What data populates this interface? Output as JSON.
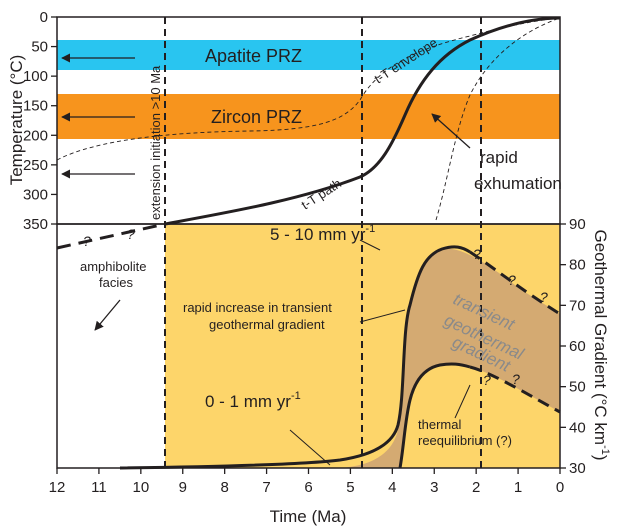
{
  "colors": {
    "apatite_band": "#29c5f0",
    "zircon_band": "#f7941d",
    "lower_field": "#fdd56a",
    "transient_field": "#d4aa72",
    "ink": "#231f20"
  },
  "x_axis": {
    "label": "Time (Ma)",
    "ticks": [
      "12",
      "11",
      "10",
      "9",
      "8",
      "7",
      "6",
      "5",
      "4",
      "3",
      "2",
      "1",
      "0"
    ],
    "range": [
      12,
      0
    ]
  },
  "left_axis": {
    "label": "Temperature (°C)",
    "ticks": [
      "0",
      "50",
      "100",
      "150",
      "200",
      "250",
      "300",
      "350"
    ],
    "range": [
      0,
      350
    ]
  },
  "right_axis": {
    "label": "Geothermal Gradient (°C km",
    "label_sup": "-1",
    "label_close": ")",
    "ticks": [
      "30",
      "40",
      "50",
      "60",
      "70",
      "80",
      "90"
    ],
    "range": [
      30,
      90
    ]
  },
  "zones": {
    "apatite": {
      "label": "Apatite PRZ",
      "t_min": 40,
      "t_max": 80
    },
    "zircon": {
      "label": "Zircon PRZ",
      "t_min": 130,
      "t_max": 200
    }
  },
  "labels": {
    "extension": "extension initiation >10 Ma",
    "envelope": "t-T envelope",
    "path": "t-T path",
    "rapid_1": "rapid",
    "rapid_2": "exhumation",
    "amph_1": "amphibolite",
    "amph_2": "facies",
    "rate_fast": "5 - 10 mm yr",
    "rate_slow": "0 - 1 mm yr",
    "rate_sup": "-1",
    "increase_1": "rapid increase in transient",
    "increase_2": "geothermal gradient",
    "transient_1": "transient",
    "transient_2": "geothermal",
    "transient_3": "gradient",
    "thermal_1": "thermal",
    "thermal_2": "reequilibrium (?)",
    "question": "?"
  },
  "markers": {
    "dashed_times": [
      10,
      5,
      2
    ]
  }
}
